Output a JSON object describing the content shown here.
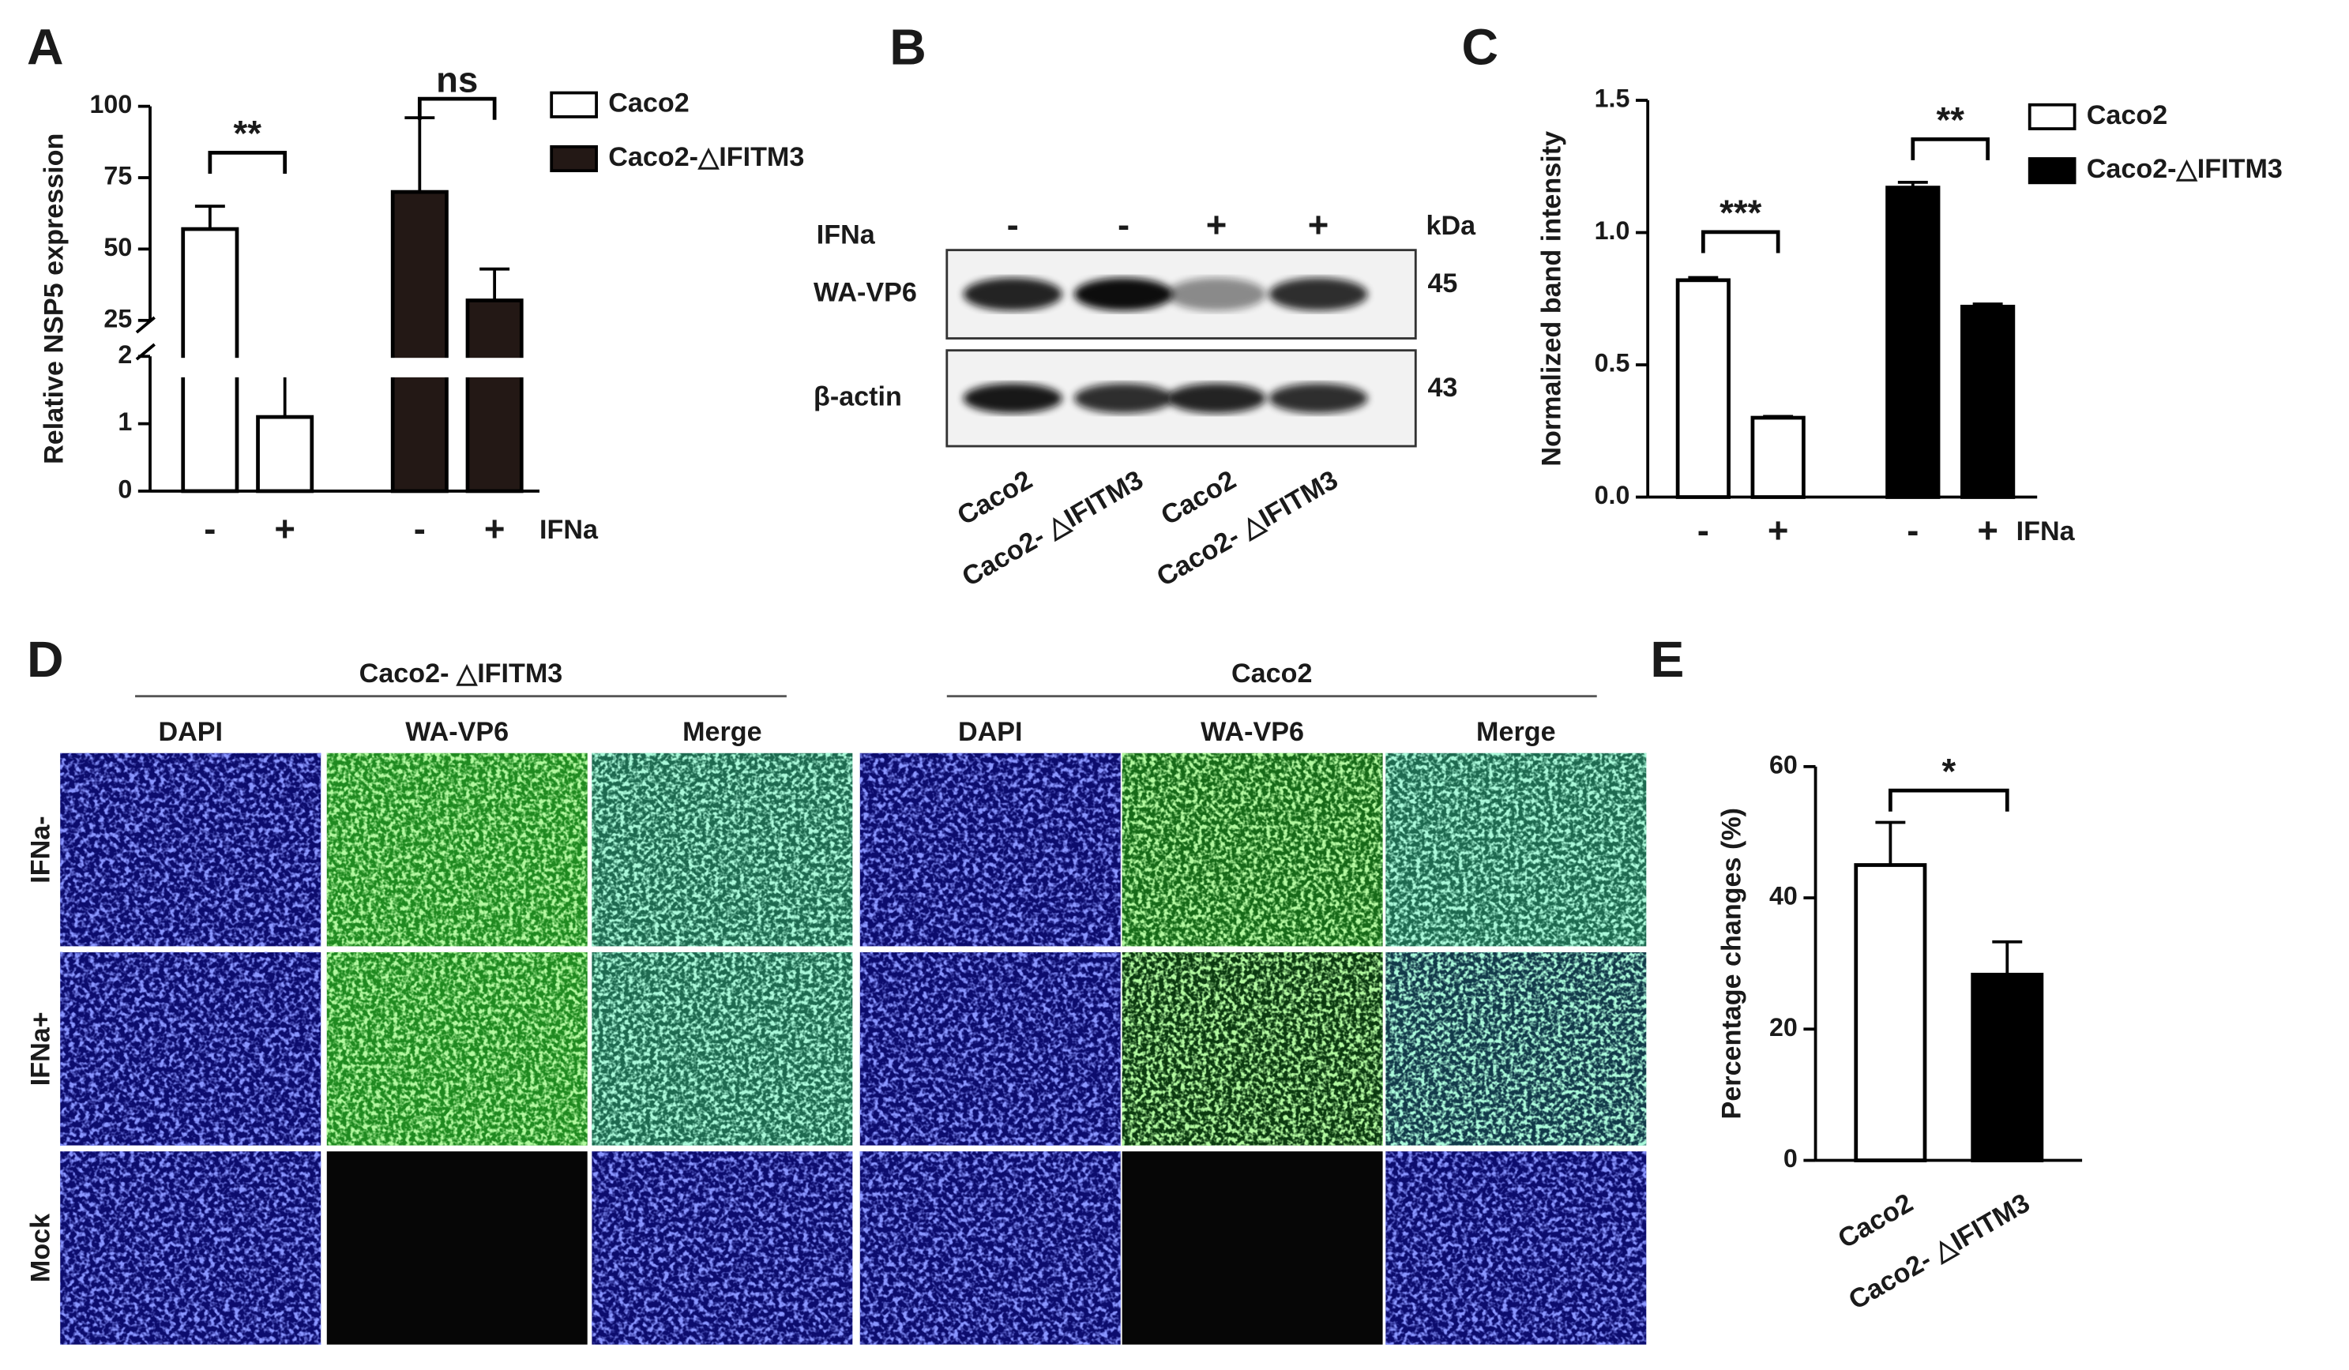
{
  "chart_data": [
    {
      "panel_label": "A",
      "type": "bar",
      "ylabel": "Relative NSP5 expression",
      "xlabel": "IFNa",
      "categories": [
        "-",
        "+",
        "-",
        "+"
      ],
      "series": [
        {
          "name": "Caco2",
          "color": "#ffffff",
          "values": [
            57,
            1.1,
            null,
            null
          ],
          "errors": [
            8,
            0.65,
            null,
            null
          ]
        },
        {
          "name": "Caco2-△IFITM3",
          "color": "#231815",
          "values": [
            null,
            null,
            70,
            32
          ],
          "errors": [
            null,
            null,
            26,
            11
          ]
        }
      ],
      "ylim": [
        0,
        100
      ],
      "axis_break": [
        2,
        25
      ],
      "yticks": [
        0,
        1,
        2,
        25,
        50,
        75,
        100
      ],
      "annotations": [
        "**",
        "ns"
      ],
      "legend": "right"
    },
    {
      "panel_label": "C",
      "type": "bar",
      "ylabel": "Normalized band intensity",
      "xlabel": "IFNa",
      "categories": [
        "-",
        "+",
        "-",
        "+"
      ],
      "series": [
        {
          "name": "Caco2",
          "color": "#ffffff",
          "values": [
            0.82,
            0.3,
            null,
            null
          ],
          "errors": [
            0.01,
            0.005,
            null,
            null
          ]
        },
        {
          "name": "Caco2-△IFITM3",
          "color": "#000000",
          "values": [
            null,
            null,
            1.17,
            0.72
          ],
          "errors": [
            null,
            null,
            0.02,
            0.01
          ]
        }
      ],
      "ylim": [
        0,
        1.5
      ],
      "yticks": [
        {
          "value": 0,
          "label": "0.0"
        },
        {
          "value": 0.5,
          "label": "0.5"
        },
        {
          "value": 1,
          "label": "1.0"
        },
        {
          "value": 1.5,
          "label": "1.5"
        }
      ],
      "annotations": [
        "***",
        "**"
      ],
      "legend": "right"
    },
    {
      "panel_label": "E",
      "type": "bar",
      "ylabel": "Percentage changes (%)",
      "categories": [
        "Caco2",
        "Caco2- △IFITM3"
      ],
      "values": [
        45,
        28.3
      ],
      "errors": [
        6.5,
        5
      ],
      "colors": [
        "#ffffff",
        "#000000"
      ],
      "ylim": [
        0,
        60
      ],
      "yticks": [
        0,
        20,
        40,
        60
      ],
      "annotations": [
        "*"
      ]
    }
  ],
  "blot": {
    "panel_label": "B",
    "treatment": "IFNa",
    "treatment_signs": [
      "-",
      "-",
      "+",
      "+"
    ],
    "unit": "kDa",
    "rows": [
      {
        "label": "WA-VP6",
        "size": 45
      },
      {
        "label": "β-actin",
        "size": 43
      }
    ],
    "lanes": [
      "Caco2",
      "Caco2- △IFITM3",
      "Caco2",
      "Caco2- △IFITM3"
    ]
  },
  "microscopy": {
    "panel_label": "D",
    "groups": [
      {
        "name": "Caco2- △IFITM3",
        "channels": [
          "DAPI",
          "WA-VP6",
          "Merge"
        ]
      },
      {
        "name": "Caco2",
        "channels": [
          "DAPI",
          "WA-VP6",
          "Merge"
        ]
      }
    ],
    "rows": [
      "IFNa-",
      "IFNa+",
      "Mock"
    ]
  }
}
